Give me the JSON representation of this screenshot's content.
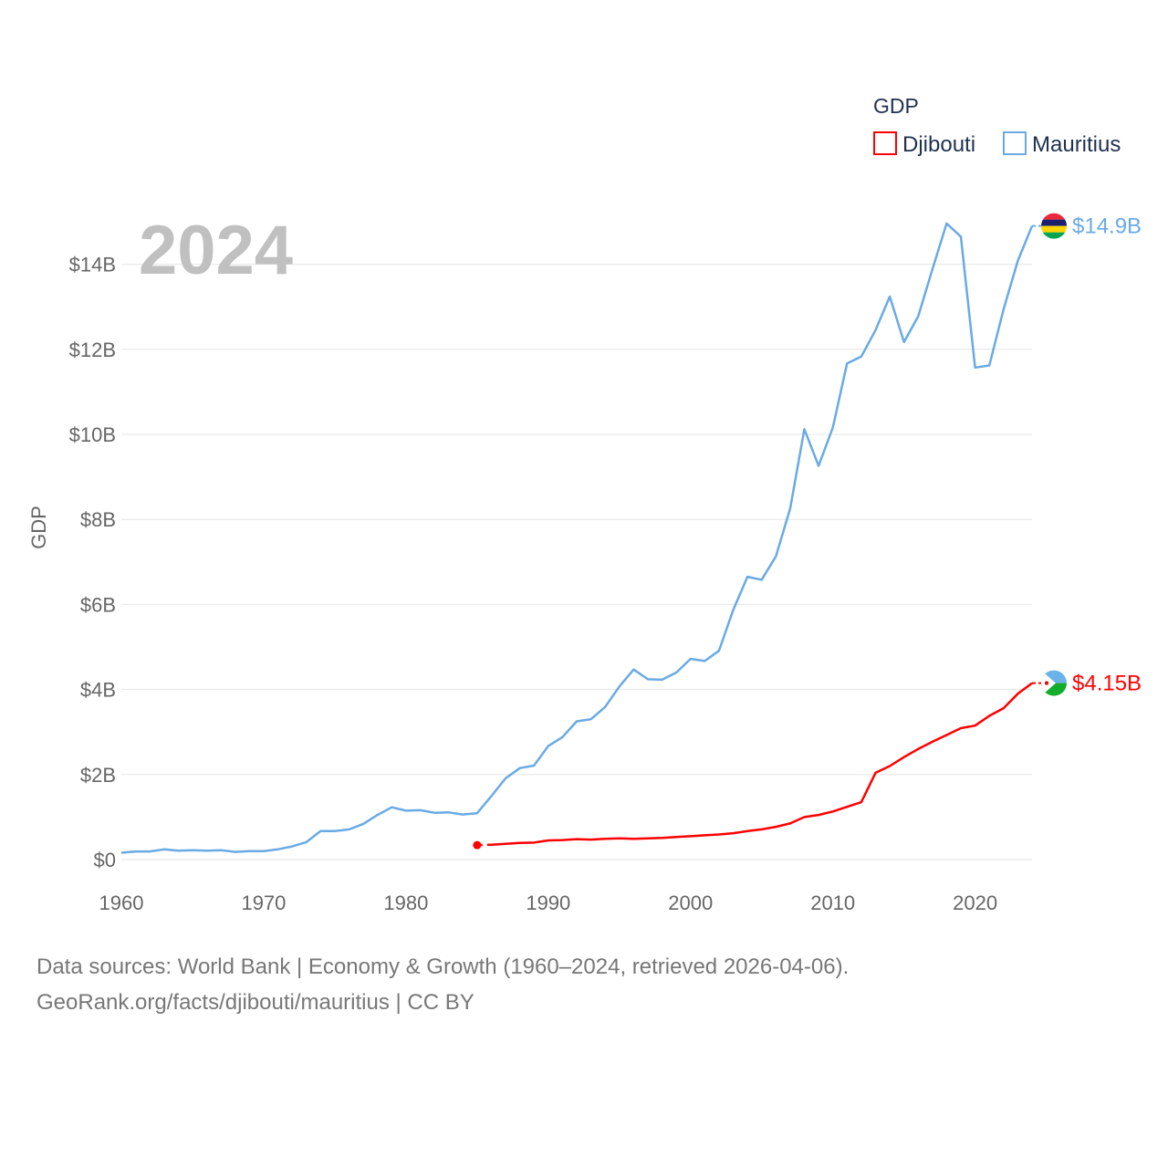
{
  "chart_data": {
    "type": "line",
    "title": "",
    "year_label": "2024",
    "ylabel": "GDP",
    "xlabel": "",
    "xlim": [
      1960,
      2024
    ],
    "ylim": [
      0,
      15000000000
    ],
    "x_ticks": [
      {
        "value": 1960,
        "label": "1960"
      },
      {
        "value": 1970,
        "label": "1970"
      },
      {
        "value": 1980,
        "label": "1980"
      },
      {
        "value": 1990,
        "label": "1990"
      },
      {
        "value": 2000,
        "label": "2000"
      },
      {
        "value": 2010,
        "label": "2010"
      },
      {
        "value": 2020,
        "label": "2020"
      }
    ],
    "y_ticks": [
      {
        "value": 0,
        "label": "$0"
      },
      {
        "value": 2000000000,
        "label": "$2B"
      },
      {
        "value": 4000000000,
        "label": "$4B"
      },
      {
        "value": 6000000000,
        "label": "$6B"
      },
      {
        "value": 8000000000,
        "label": "$8B"
      },
      {
        "value": 10000000000,
        "label": "$10B"
      },
      {
        "value": 12000000000,
        "label": "$12B"
      },
      {
        "value": 14000000000,
        "label": "$14B"
      }
    ],
    "legend": {
      "title": "GDP",
      "position": "top-right",
      "entries": [
        {
          "name": "Djibouti",
          "color": "#ff0000"
        },
        {
          "name": "Mauritius",
          "color": "#6aaae4"
        }
      ]
    },
    "series": [
      {
        "name": "Mauritius",
        "color": "#6aaae4",
        "end_label": "$14.9B",
        "flag_colors": [
          "#ea2839",
          "#1a206d",
          "#ffd500",
          "#00a551"
        ],
        "x": [
          1960,
          1961,
          1962,
          1963,
          1964,
          1965,
          1966,
          1967,
          1968,
          1969,
          1970,
          1971,
          1972,
          1973,
          1974,
          1975,
          1976,
          1977,
          1978,
          1979,
          1980,
          1981,
          1982,
          1983,
          1984,
          1985,
          1986,
          1987,
          1988,
          1989,
          1990,
          1991,
          1992,
          1993,
          1994,
          1995,
          1996,
          1997,
          1998,
          1999,
          2000,
          2001,
          2002,
          2003,
          2004,
          2005,
          2006,
          2007,
          2008,
          2009,
          2010,
          2011,
          2012,
          2013,
          2014,
          2015,
          2016,
          2017,
          2018,
          2019,
          2020,
          2021,
          2022,
          2023,
          2024
        ],
        "values": [
          0.16,
          0.19,
          0.19,
          0.24,
          0.21,
          0.22,
          0.21,
          0.22,
          0.18,
          0.2,
          0.2,
          0.24,
          0.31,
          0.41,
          0.67,
          0.67,
          0.71,
          0.84,
          1.05,
          1.23,
          1.15,
          1.16,
          1.1,
          1.11,
          1.06,
          1.09,
          1.49,
          1.91,
          2.15,
          2.21,
          2.67,
          2.88,
          3.25,
          3.3,
          3.59,
          4.07,
          4.47,
          4.24,
          4.23,
          4.4,
          4.72,
          4.67,
          4.91,
          5.87,
          6.65,
          6.58,
          7.13,
          8.25,
          10.12,
          9.26,
          10.16,
          11.67,
          11.83,
          12.45,
          13.24,
          12.17,
          12.78,
          13.88,
          14.96,
          14.65,
          11.57,
          11.62,
          12.94,
          14.08,
          14.9
        ]
      },
      {
        "name": "Djibouti",
        "color": "#ff0000",
        "end_label": "$4.15B",
        "flag_colors": [
          "#6ab2e7",
          "#12ad2b",
          "#ffffff",
          "#d7141a"
        ],
        "start_x": 1985,
        "start_value": 0.34,
        "x": [
          1986,
          1987,
          1988,
          1989,
          1990,
          1991,
          1992,
          1993,
          1994,
          1995,
          1996,
          1997,
          1998,
          1999,
          2000,
          2001,
          2002,
          2003,
          2004,
          2005,
          2006,
          2007,
          2008,
          2009,
          2010,
          2011,
          2012,
          2013,
          2014,
          2015,
          2016,
          2017,
          2018,
          2019,
          2020,
          2021,
          2022,
          2023,
          2024
        ],
        "values": [
          0.35,
          0.37,
          0.39,
          0.4,
          0.45,
          0.46,
          0.48,
          0.47,
          0.49,
          0.5,
          0.49,
          0.5,
          0.51,
          0.53,
          0.55,
          0.57,
          0.59,
          0.62,
          0.67,
          0.71,
          0.77,
          0.85,
          1.0,
          1.05,
          1.13,
          1.24,
          1.35,
          2.04,
          2.2,
          2.41,
          2.6,
          2.77,
          2.93,
          3.09,
          3.15,
          3.38,
          3.56,
          3.9,
          4.15
        ]
      }
    ]
  },
  "footer": {
    "line1": "Data sources: World Bank | Economy & Growth (1960–2024, retrieved 2026-04-06).",
    "line2": "GeoRank.org/facts/djibouti/mauritius | CC BY"
  }
}
